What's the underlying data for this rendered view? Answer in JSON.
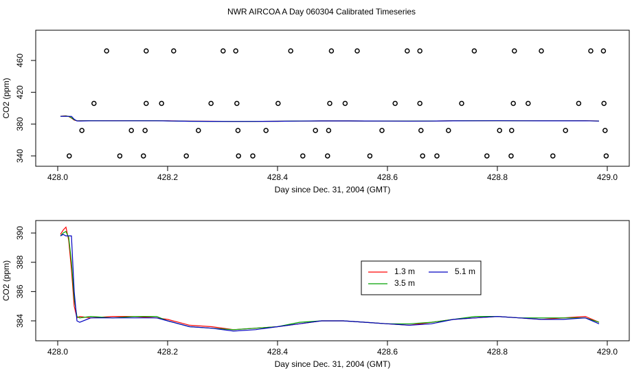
{
  "title": "NWR AIRCOA A  Day 060304  Calibrated Timeseries",
  "chart_data": [
    {
      "type": "scatter",
      "xlabel": "Day since Dec. 31, 2004 (GMT)",
      "ylabel": "CO2 (ppm)",
      "xlim": [
        427.96,
        429.04
      ],
      "ylim": [
        327,
        498
      ],
      "xticks": [
        {
          "value": 428,
          "label": "428.0"
        },
        428.2,
        428.4,
        428.6,
        428.8,
        {
          "value": 429,
          "label": "429.0"
        }
      ],
      "yticks": [
        340,
        380,
        420,
        460
      ],
      "color": "#000000",
      "x": [
        428.089,
        428.161,
        428.211,
        428.301,
        428.324,
        428.424,
        428.498,
        428.545,
        428.636,
        428.659,
        428.758,
        428.831,
        428.88,
        428.97,
        428.993,
        428.066,
        428.161,
        428.189,
        428.279,
        428.326,
        428.401,
        428.495,
        428.523,
        428.614,
        428.659,
        428.735,
        428.829,
        428.856,
        428.948,
        428.994,
        428.044,
        428.134,
        428.159,
        428.256,
        428.328,
        428.379,
        428.469,
        428.493,
        428.59,
        428.661,
        428.711,
        428.804,
        428.826,
        428.924,
        428.996,
        428.021,
        428.113,
        428.156,
        428.234,
        428.329,
        428.355,
        428.446,
        428.491,
        428.568,
        428.664,
        428.69,
        428.781,
        428.825,
        428.901,
        428.998
      ],
      "values": [
        472,
        472,
        472,
        472,
        472,
        472,
        472,
        472,
        472,
        472,
        472,
        472,
        472,
        472,
        472,
        406,
        406,
        406,
        406,
        406,
        406,
        406,
        406,
        406,
        406,
        406,
        406,
        406,
        406,
        406,
        372,
        372,
        372,
        372,
        372,
        372,
        372,
        372,
        372,
        372,
        372,
        372,
        372,
        372,
        372,
        340,
        340,
        340,
        340,
        340,
        340,
        340,
        340,
        340,
        340,
        340,
        340,
        340,
        340,
        340
      ]
    },
    {
      "type": "line",
      "xlabel": "Day since Dec. 31, 2004 (GMT)",
      "ylabel": "CO2 (ppm)",
      "xlim": [
        427.96,
        429.04
      ],
      "ylim": [
        382.64,
        390.85
      ],
      "xticks": [
        {
          "value": 428,
          "label": "428.0"
        },
        428.2,
        428.4,
        428.6,
        428.8,
        {
          "value": 429,
          "label": "429.0"
        }
      ],
      "yticks": [
        384,
        386,
        388,
        390
      ],
      "legend": "center",
      "x": [
        428.005,
        428.01,
        428.015,
        428.02,
        428.025,
        428.03,
        428.035,
        428.04,
        428.06,
        428.1,
        428.14,
        428.18,
        428.2,
        428.24,
        428.28,
        428.32,
        428.36,
        428.4,
        428.44,
        428.48,
        428.52,
        428.56,
        428.6,
        428.64,
        428.68,
        428.72,
        428.76,
        428.8,
        428.84,
        428.88,
        428.92,
        428.96,
        428.985
      ],
      "series": [
        {
          "name": "1.3 m",
          "color": "#ff0000",
          "values": [
            389.9,
            390.2,
            390.4,
            389.5,
            387.5,
            385.0,
            384.2,
            384.3,
            384.2,
            384.3,
            384.3,
            384.2,
            384.1,
            383.7,
            383.6,
            383.4,
            383.5,
            383.6,
            383.8,
            384.0,
            384.0,
            383.9,
            383.8,
            383.7,
            383.9,
            384.1,
            384.2,
            384.3,
            384.2,
            384.1,
            384.2,
            384.3,
            383.9
          ]
        },
        {
          "name": "3.5 m",
          "color": "#00a000",
          "values": [
            389.8,
            390.0,
            390.1,
            389.7,
            388.0,
            385.5,
            384.3,
            384.2,
            384.3,
            384.2,
            384.3,
            384.3,
            384.0,
            383.6,
            383.5,
            383.4,
            383.5,
            383.6,
            383.9,
            384.0,
            384.0,
            383.9,
            383.8,
            383.8,
            383.9,
            384.1,
            384.3,
            384.3,
            384.2,
            384.2,
            384.2,
            384.2,
            383.9
          ]
        },
        {
          "name": "5.1 m",
          "color": "#0000c0",
          "values": [
            389.8,
            389.9,
            389.8,
            389.8,
            389.8,
            386.0,
            384.0,
            383.9,
            384.2,
            384.2,
            384.2,
            384.2,
            384.0,
            383.6,
            383.5,
            383.3,
            383.4,
            383.6,
            383.8,
            384.0,
            384.0,
            383.9,
            383.8,
            383.7,
            383.8,
            384.1,
            384.2,
            384.3,
            384.2,
            384.1,
            384.1,
            384.2,
            383.8
          ]
        }
      ]
    }
  ]
}
